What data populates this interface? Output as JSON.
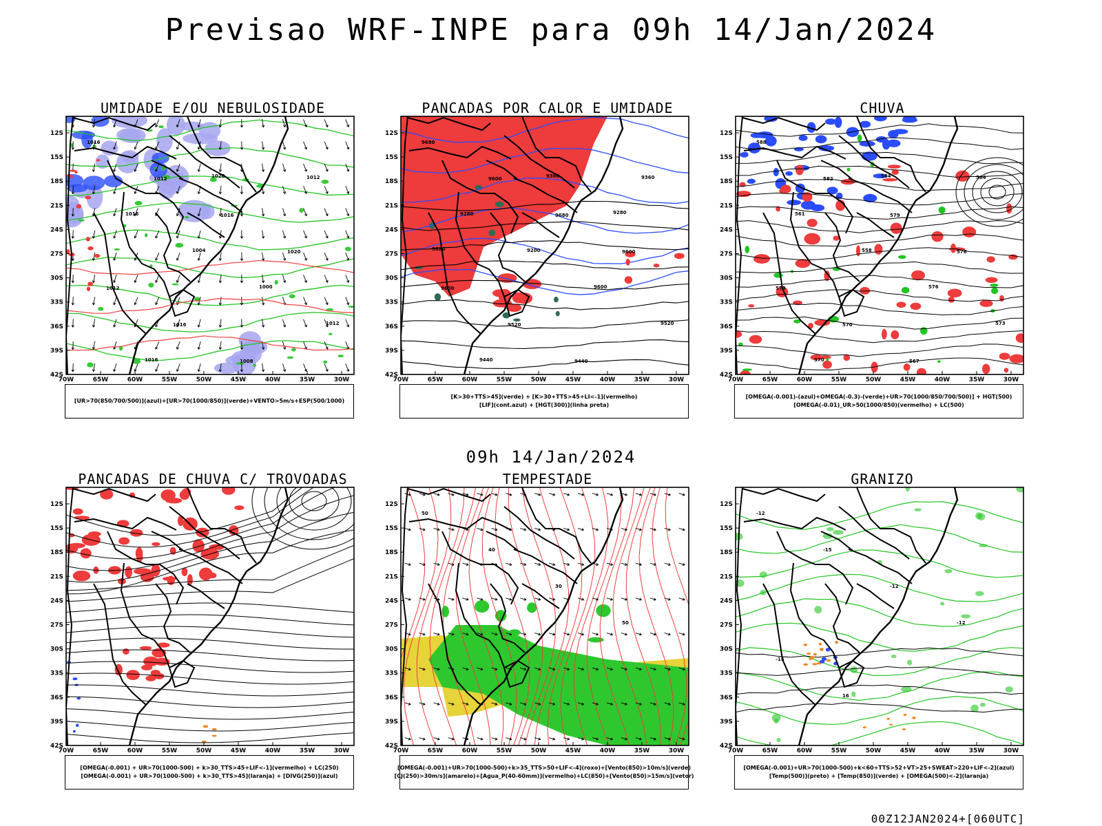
{
  "header": {
    "title": "Previsao WRF-INPE  para 09h 14/Jan/2024"
  },
  "mid_title": "09h 14/Jan/2024",
  "footer": "00Z12JAN2024+[060UTC]",
  "axes": {
    "lat_labels": [
      "12S",
      "15S",
      "18S",
      "21S",
      "24S",
      "27S",
      "30S",
      "33S",
      "36S",
      "39S",
      "42S"
    ],
    "lon_labels": [
      "70W",
      "65W",
      "60W",
      "55W",
      "50W",
      "45W",
      "40W",
      "35W",
      "30W"
    ]
  },
  "panels": [
    {
      "title": "UMIDADE E/OU NEBULOSIDADE",
      "legend": [
        "[UR>70(850/700/500)](azul)+[UR>70(1000/850)](verde)+VENTO>5m/s+ESP(500/1000)"
      ],
      "contour_labels": [
        "1016",
        "1012",
        "1016",
        "1020",
        "1012",
        "1016",
        "1008",
        "1012",
        "1016",
        "1004",
        "1000",
        "1012",
        "1016",
        "1020"
      ]
    },
    {
      "title": "PANCADAS POR CALOR E UMIDADE",
      "legend": [
        "[K>30+TTS>45](verde) + [K>30+TTS>45+LI<-1](vermelho)",
        "[LIF](cont.azul) + [HGT(300)](linha preta)"
      ],
      "contour_labels": [
        "9680",
        "9600",
        "9680",
        "9600",
        "9600",
        "9520",
        "9440",
        "9360",
        "9280",
        "9200",
        "9600",
        "9520",
        "9440",
        "9360",
        "9280",
        "9680"
      ]
    },
    {
      "title": "CHUVA",
      "legend": [
        "[OMEGA(-0.001)-(azul)+OMEGA(-0.3)-(verde)+UR>70(1000/850/700/500)] + HGT(500)",
        "[OMEGA(-0.01)_UR>50(1000/850)(vermelho) + LC(500)"
      ],
      "contour_labels": [
        "588",
        "582",
        "579",
        "576",
        "573",
        "570",
        "567",
        "564",
        "561",
        "558",
        "576",
        "573",
        "570",
        "564"
      ]
    },
    {
      "title": "PANCADAS DE CHUVA C/ TROVOADAS",
      "legend": [
        "[OMEGA(-0.001) + UR>70(1000-500) + k>30_TTS>45+LIF<-1](vermelho) + LC(250)",
        "[OMEGA(-0.001) + UR>70(1000-500) + k>30_TTS>45](laranja) + [DIVG(250)](azul)"
      ],
      "contour_labels": []
    },
    {
      "title": "TEMPESTADE",
      "legend": [
        "[OMEGA(-0.001)+UR>70(1000-500)+k>35_TTS>50+LIF<-4](roxo)+[Vento(850)>10m/s](verde)",
        "[CJ(250)>30m/s](amarelo)+[Agua_P(40-60mm)](vermelho)+LC(850)+[Vento(850)>15m/s](vetor)"
      ],
      "contour_labels": [
        "50",
        "40",
        "30",
        "50"
      ]
    },
    {
      "title": "GRANIZO",
      "legend": [
        "[OMEGA(-0.001)+UR>70(1000-500)+k<60+TTS>52+VT>25+SWEAT>220+LIF<-2](azul)",
        "[Temp(500)](preto) + [Temp(850)](verde) + [OMEGA(500)<-2](laranja)"
      ],
      "contour_labels": [
        "-12",
        "-15",
        "-12",
        "-12",
        "-15",
        "16"
      ]
    }
  ],
  "colors": {
    "red": "#ee3b3b",
    "green": "#22c422",
    "blue": "#2a4dff",
    "lavender": "#a6a6f0",
    "yellow": "#e6d43a",
    "orange": "#f08a24",
    "darkgreen": "#2f6b55"
  }
}
